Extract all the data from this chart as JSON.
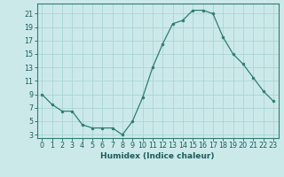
{
  "x": [
    0,
    1,
    2,
    3,
    4,
    5,
    6,
    7,
    8,
    9,
    10,
    11,
    12,
    13,
    14,
    15,
    16,
    17,
    18,
    19,
    20,
    21,
    22,
    23
  ],
  "y": [
    9,
    7.5,
    6.5,
    6.5,
    4.5,
    4,
    4,
    4,
    3,
    5,
    8.5,
    13,
    16.5,
    19.5,
    20,
    21.5,
    21.5,
    21,
    17.5,
    15,
    13.5,
    11.5,
    9.5,
    8
  ],
  "line_color": "#2e7d6e",
  "marker_color": "#2e7d6e",
  "bg_color": "#cce9ea",
  "grid_color": "#aad4d5",
  "xlabel": "Humidex (Indice chaleur)",
  "xlim": [
    -0.5,
    23.5
  ],
  "ylim": [
    2.5,
    22.5
  ],
  "yticks": [
    3,
    5,
    7,
    9,
    11,
    13,
    15,
    17,
    19,
    21
  ],
  "xticks": [
    0,
    1,
    2,
    3,
    4,
    5,
    6,
    7,
    8,
    9,
    10,
    11,
    12,
    13,
    14,
    15,
    16,
    17,
    18,
    19,
    20,
    21,
    22,
    23
  ],
  "xlabel_fontsize": 6.5,
  "tick_fontsize": 5.8
}
